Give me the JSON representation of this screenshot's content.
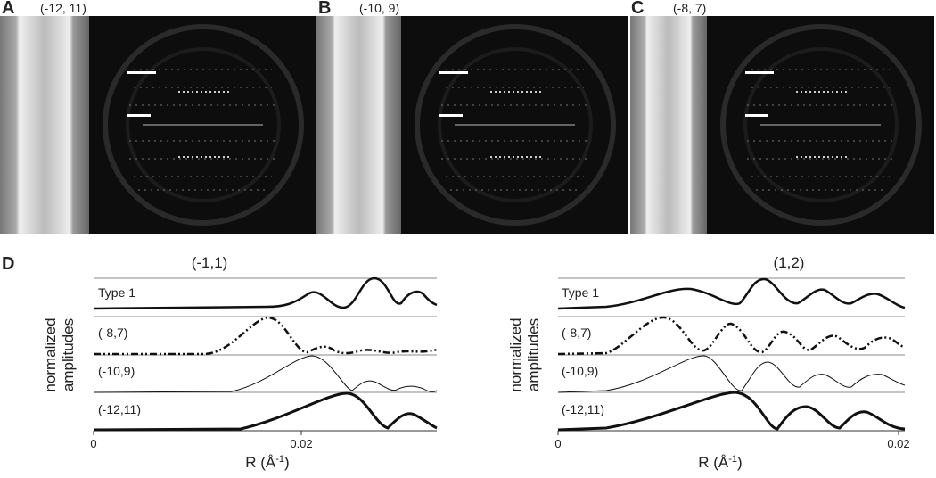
{
  "panels": [
    {
      "letter": "A",
      "label": "(-12, 11)"
    },
    {
      "letter": "B",
      "label": "(-10, 9)"
    },
    {
      "letter": "C",
      "label": "(-8, 7)"
    }
  ],
  "plot_letter": "D",
  "y_label_1": "normalized",
  "y_label_2": "amplitudes",
  "x_label": "R (Å",
  "x_label_sup": "-1",
  "x_label_end": ")",
  "plots": [
    {
      "title": "(-1,1)",
      "traces": [
        "Type 1",
        "(-8,7)",
        "(-10,9)",
        "(-12,11)"
      ],
      "xticks": [
        "0",
        "0.02"
      ]
    },
    {
      "title": "(1,2)",
      "traces": [
        "Type 1",
        "(-8,7)",
        "(-10,9)",
        "(-12,11)"
      ],
      "xticks": [
        "0",
        "0.02"
      ]
    }
  ]
}
